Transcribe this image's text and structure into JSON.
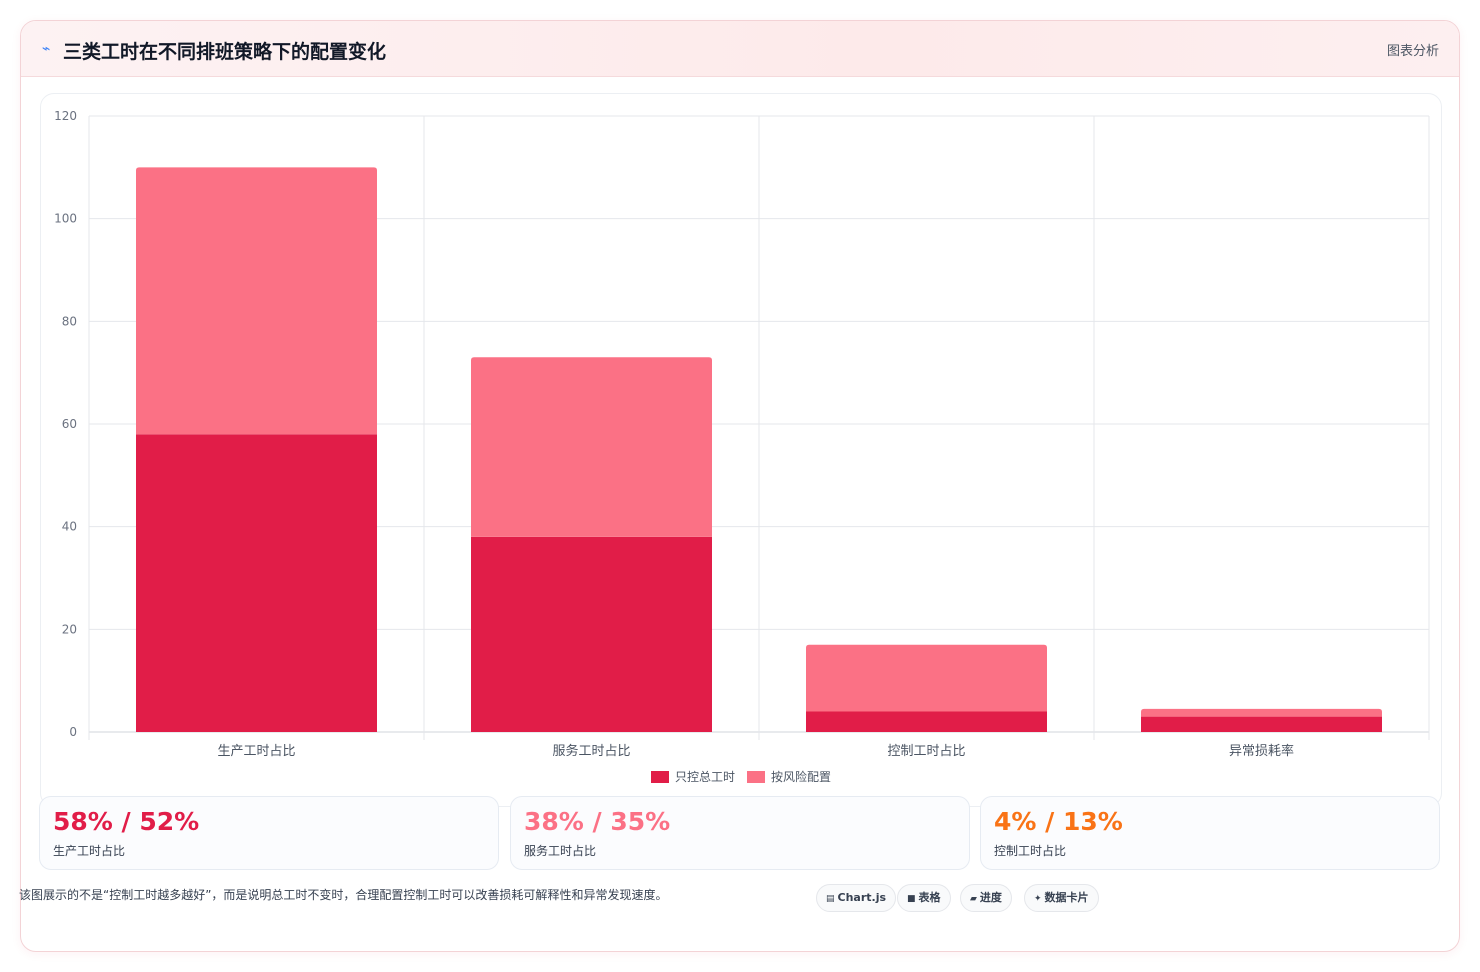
{
  "header": {
    "icon": "trend-icon",
    "title": "三类工时在不同排班策略下的配置变化",
    "right_label": "图表分析"
  },
  "chart_data": {
    "type": "bar",
    "stacked": true,
    "categories": [
      "生产工时占比",
      "服务工时占比",
      "控制工时占比",
      "异常损耗率"
    ],
    "series": [
      {
        "name": "只控总工时",
        "values": [
          58,
          38,
          4,
          3
        ],
        "color": "#e11d48"
      },
      {
        "name": "按风险配置",
        "values": [
          52,
          35,
          13,
          1.5
        ],
        "color": "#fb7185"
      }
    ],
    "ylim": [
      0,
      120
    ],
    "yticks": [
      0,
      20,
      40,
      60,
      80,
      100,
      120
    ],
    "grid": true,
    "legend": "bottom"
  },
  "stats": [
    {
      "value": "58% / 52%",
      "label": "生产工时占比",
      "color": "#e11d48"
    },
    {
      "value": "38% / 35%",
      "label": "服务工时占比",
      "color": "#fb7185"
    },
    {
      "value": "4% / 13%",
      "label": "控制工时占比",
      "color": "#f97316"
    }
  ],
  "footnote": "该图展示的不是“控制工时越多越好”，而是说明总工时不变时，合理配置控制工时可以改善损耗可解释性和异常发现速度。",
  "tags": [
    {
      "icon": "chart-icon",
      "glyph": "▤",
      "label": "Chart.js"
    },
    {
      "icon": "table-icon",
      "glyph": "■",
      "label": "表格"
    },
    {
      "icon": "progress-icon",
      "glyph": "▰",
      "label": "进度"
    },
    {
      "icon": "card-icon",
      "glyph": "✦",
      "label": "数据卡片"
    }
  ]
}
